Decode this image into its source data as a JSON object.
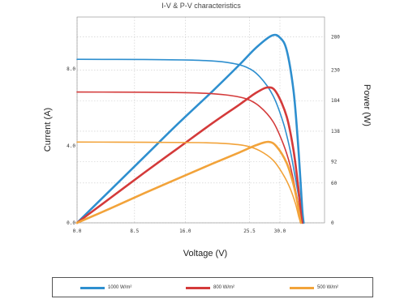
{
  "chart_data": {
    "type": "line",
    "title": "I-V & P-V characteristics",
    "xlabel": "Voltage (V)",
    "ylabel_left": "Current (A)",
    "ylabel_right": "Power (W)",
    "xlim": [
      0,
      36.6
    ],
    "ylim_left": [
      0,
      10.7
    ],
    "ylim_right": [
      0,
      310
    ],
    "x_ticks": [
      "0.0",
      "8.5",
      "16.0",
      "25.5",
      "30.0"
    ],
    "x_tick_values": [
      0,
      8.5,
      16,
      25.5,
      30
    ],
    "y_left_ticks": [
      "0.0",
      "4.0",
      "8.0"
    ],
    "y_left_tick_values": [
      0,
      4,
      8
    ],
    "y_right_ticks": [
      "0",
      "60",
      "92",
      "138",
      "184",
      "230",
      "280"
    ],
    "y_right_tick_values": [
      0,
      60,
      92,
      138,
      184,
      230,
      280
    ],
    "grid": true,
    "legend_placement": "bottom",
    "series": [
      {
        "name": "1000 W/m²",
        "color": "#2e8fcf",
        "current": [
          [
            0,
            8.5
          ],
          [
            10,
            8.49
          ],
          [
            18,
            8.45
          ],
          [
            22,
            8.35
          ],
          [
            25,
            8.1
          ],
          [
            27,
            7.6
          ],
          [
            29,
            6.6
          ],
          [
            30.5,
            5.2
          ],
          [
            31.5,
            3.8
          ],
          [
            32.3,
            2.3
          ],
          [
            33,
            0.9
          ],
          [
            33.4,
            0
          ]
        ],
        "power": [
          [
            0,
            0
          ],
          [
            5,
            50
          ],
          [
            10,
            100
          ],
          [
            15,
            150
          ],
          [
            20,
            198
          ],
          [
            24,
            238
          ],
          [
            26.5,
            264
          ],
          [
            28.8,
            282
          ],
          [
            30,
            279
          ],
          [
            31,
            260
          ],
          [
            32,
            200
          ],
          [
            32.6,
            130
          ],
          [
            33,
            70
          ],
          [
            33.3,
            20
          ],
          [
            33.5,
            0
          ]
        ]
      },
      {
        "name": "800 W/m²",
        "color": "#d43a3a",
        "current": [
          [
            0,
            6.8
          ],
          [
            10,
            6.79
          ],
          [
            18,
            6.75
          ],
          [
            22,
            6.65
          ],
          [
            25,
            6.45
          ],
          [
            27,
            6.05
          ],
          [
            29,
            5.25
          ],
          [
            30.5,
            4.1
          ],
          [
            31.5,
            3.0
          ],
          [
            32.3,
            1.7
          ],
          [
            33,
            0.5
          ],
          [
            33.3,
            0
          ]
        ],
        "power": [
          [
            0,
            0
          ],
          [
            5,
            38
          ],
          [
            10,
            76
          ],
          [
            15,
            113
          ],
          [
            20,
            150
          ],
          [
            24,
            178
          ],
          [
            26.5,
            196
          ],
          [
            28.3,
            204
          ],
          [
            29.5,
            196
          ],
          [
            31,
            160
          ],
          [
            32,
            110
          ],
          [
            32.7,
            55
          ],
          [
            33.1,
            15
          ],
          [
            33.3,
            0
          ]
        ]
      },
      {
        "name": "500 W/m²",
        "color": "#f2a33a",
        "current": [
          [
            0,
            4.2
          ],
          [
            10,
            4.19
          ],
          [
            18,
            4.17
          ],
          [
            22,
            4.12
          ],
          [
            25,
            4.0
          ],
          [
            27,
            3.75
          ],
          [
            29,
            3.25
          ],
          [
            30.5,
            2.5
          ],
          [
            31.5,
            1.8
          ],
          [
            32.3,
            1.0
          ],
          [
            32.8,
            0.3
          ],
          [
            33.1,
            0
          ]
        ],
        "power": [
          [
            0,
            0
          ],
          [
            5,
            22
          ],
          [
            10,
            45
          ],
          [
            15,
            67
          ],
          [
            20,
            89
          ],
          [
            24,
            106
          ],
          [
            26.5,
            117
          ],
          [
            28.3,
            122
          ],
          [
            29.5,
            115
          ],
          [
            31,
            90
          ],
          [
            32,
            58
          ],
          [
            32.6,
            30
          ],
          [
            33,
            5
          ],
          [
            33.1,
            0
          ]
        ]
      }
    ]
  }
}
